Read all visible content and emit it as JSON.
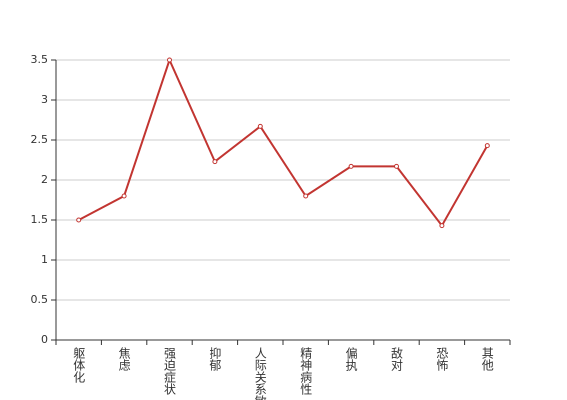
{
  "chart_data": {
    "type": "line",
    "categories": [
      "躯体化",
      "焦虑",
      "强迫症状",
      "抑郁",
      "人际关系敏感",
      "精神病性",
      "偏执",
      "敌对",
      "恐怖",
      "其他"
    ],
    "values": [
      1.5,
      1.8,
      3.5,
      2.23,
      2.67,
      1.8,
      2.17,
      2.17,
      1.43,
      2.43
    ],
    "color": "#c23531",
    "ylim": [
      0,
      3.5
    ],
    "yticks": [
      0,
      0.5,
      1,
      1.5,
      2,
      2.5,
      3,
      3.5
    ],
    "grid": true
  }
}
